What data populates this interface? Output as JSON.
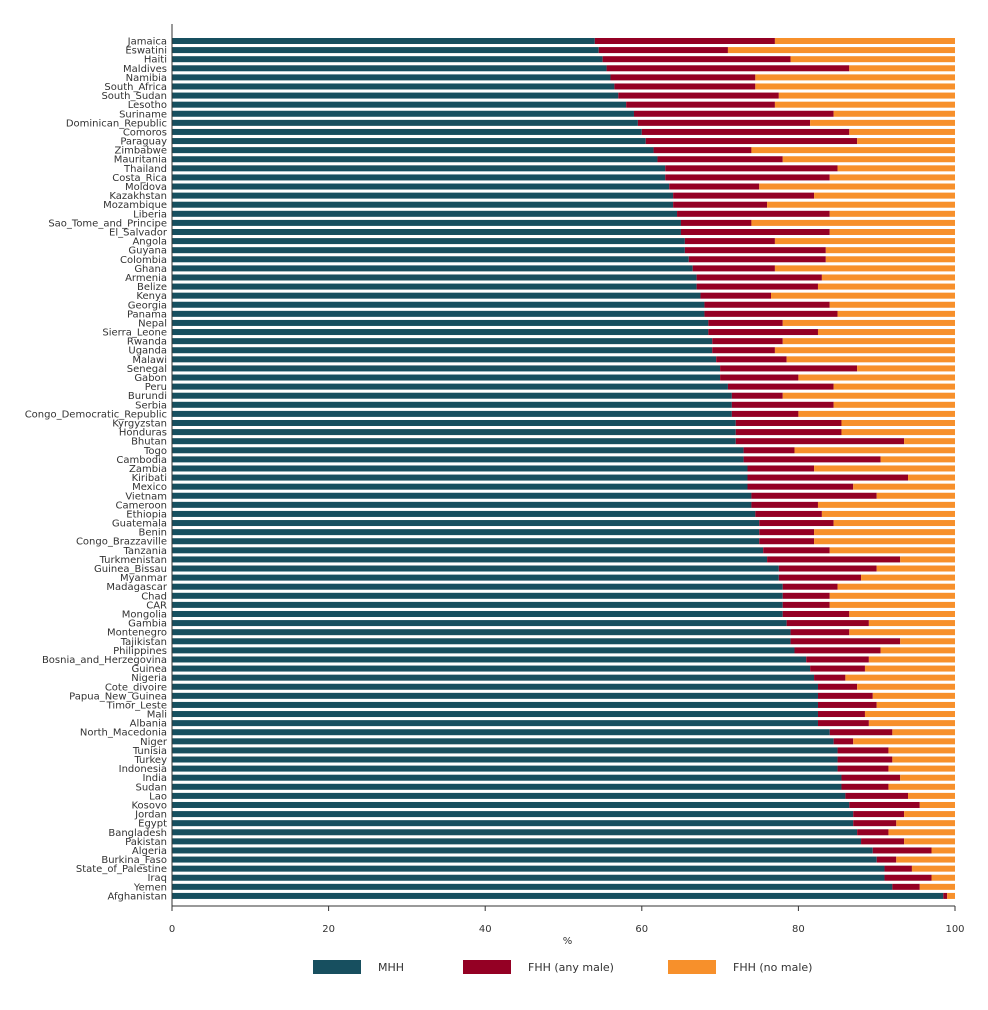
{
  "chart_data": {
    "type": "bar",
    "orientation": "horizontal",
    "stacked": true,
    "xlabel": "%",
    "ylabel": "",
    "xlim": [
      0,
      100
    ],
    "xticks": [
      0,
      20,
      40,
      60,
      80,
      100
    ],
    "grid": false,
    "legend_position": "bottom",
    "categories": [
      "Jamaica",
      "Eswatini",
      "Haiti",
      "Maldives",
      "Namibia",
      "South_Africa",
      "South_Sudan",
      "Lesotho",
      "Suriname",
      "Dominican_Republic",
      "Comoros",
      "Paraguay",
      "Zimbabwe",
      "Mauritania",
      "Thailand",
      "Costa_Rica",
      "Moldova",
      "Kazakhstan",
      "Mozambique",
      "Liberia",
      "Sao_Tome_and_Principe",
      "El_Salvador",
      "Angola",
      "Guyana",
      "Colombia",
      "Ghana",
      "Armenia",
      "Belize",
      "Kenya",
      "Georgia",
      "Panama",
      "Nepal",
      "Sierra_Leone",
      "Rwanda",
      "Uganda",
      "Malawi",
      "Senegal",
      "Gabon",
      "Peru",
      "Burundi",
      "Serbia",
      "Congo_Democratic_Republic",
      "Kyrgyzstan",
      "Honduras",
      "Bhutan",
      "Togo",
      "Cambodia",
      "Zambia",
      "Kiribati",
      "Mexico",
      "Vietnam",
      "Cameroon",
      "Ethiopia",
      "Guatemala",
      "Benin",
      "Congo_Brazzaville",
      "Tanzania",
      "Turkmenistan",
      "Guinea_Bissau",
      "Myanmar",
      "Madagascar",
      "Chad",
      "CAR",
      "Mongolia",
      "Gambia",
      "Montenegro",
      "Tajikistan",
      "Philippines",
      "Bosnia_and_Herzegovina",
      "Guinea",
      "Nigeria",
      "Cote_divoire",
      "Papua_New_Guinea",
      "Timor_Leste",
      "Mali",
      "Albania",
      "North_Macedonia",
      "Niger",
      "Tunisia",
      "Turkey",
      "Indonesia",
      "India",
      "Sudan",
      "Lao",
      "Kosovo",
      "Jordan",
      "Egypt",
      "Bangladesh",
      "Pakistan",
      "Algeria",
      "Burkina_Faso",
      "State_of_Palestine",
      "Iraq",
      "Yemen",
      "Afghanistan"
    ],
    "series": [
      {
        "name": "MHH",
        "color": "#174f5f",
        "values": [
          54,
          54.5,
          55,
          55.5,
          56,
          56.5,
          57,
          58,
          59,
          59.5,
          60,
          60.5,
          61.5,
          62,
          63,
          63,
          63.5,
          64,
          64,
          64.5,
          65,
          65,
          65.5,
          65.5,
          66,
          66.5,
          67,
          67,
          67.5,
          68,
          68,
          68.5,
          68.5,
          69,
          69,
          69.5,
          70,
          70,
          71,
          71.5,
          71.5,
          71.5,
          72,
          72,
          72,
          73,
          73,
          73.5,
          73.5,
          73.5,
          74,
          74,
          74.5,
          75,
          75,
          75,
          75.5,
          76,
          77.5,
          77.5,
          78,
          78,
          78,
          78,
          78.5,
          79,
          79,
          79.5,
          81,
          81.5,
          82,
          82.5,
          82.5,
          82.5,
          82.5,
          82.5,
          84,
          84.5,
          85,
          85,
          85,
          85.5,
          85.5,
          86,
          86.5,
          87,
          87,
          87.5,
          88,
          89.5,
          90,
          91,
          91,
          92,
          98.5
        ]
      },
      {
        "name": "FHH (any male)",
        "color": "#940024",
        "values": [
          23,
          16.5,
          24,
          31,
          18.5,
          18,
          20.5,
          19,
          25.5,
          22,
          26.5,
          27,
          12.5,
          16,
          22,
          21,
          11.5,
          18,
          12,
          19.5,
          9,
          19,
          11.5,
          18,
          17.5,
          10.5,
          16,
          15.5,
          9,
          16,
          17,
          9.5,
          14,
          9,
          8,
          9,
          17.5,
          10,
          13.5,
          6.5,
          13,
          8.5,
          13.5,
          13.5,
          21.5,
          6.5,
          17.5,
          8.5,
          20.5,
          13.5,
          16,
          8.5,
          8.5,
          9.5,
          7,
          7,
          8.5,
          17,
          12.5,
          10.5,
          7,
          6,
          6,
          8.5,
          10.5,
          7.5,
          14,
          11,
          8,
          7,
          4,
          5,
          7,
          7.5,
          6,
          6.5,
          8,
          2.5,
          6.5,
          7,
          6.5,
          7.5,
          6,
          8,
          9,
          6.5,
          5.5,
          4,
          5.5,
          7.5,
          2.5,
          3.5,
          6,
          3.5,
          0.5
        ]
      },
      {
        "name": "FHH (no male)",
        "color": "#f7902b",
        "values": [
          23,
          29,
          21,
          13.5,
          25.5,
          25.5,
          22.5,
          23,
          15.5,
          18.5,
          13.5,
          12.5,
          26,
          22,
          15,
          16,
          25,
          18,
          24,
          16,
          26,
          16,
          23,
          16.5,
          16.5,
          23,
          17,
          17.5,
          23.5,
          16,
          15,
          22,
          17.5,
          22,
          23,
          21.5,
          12.5,
          20,
          15.5,
          22,
          15.5,
          20,
          14.5,
          14.5,
          6.5,
          20.5,
          9.5,
          18,
          6,
          13,
          10,
          17.5,
          17,
          15.5,
          18,
          18,
          16,
          7,
          10,
          12,
          15,
          16,
          16,
          13.5,
          11,
          13.5,
          7,
          9.5,
          11,
          11.5,
          14,
          12.5,
          10.5,
          10,
          11.5,
          11,
          8,
          13,
          8.5,
          8,
          8.5,
          7,
          8.5,
          6,
          4.5,
          6.5,
          7.5,
          8.5,
          6.5,
          3,
          7.5,
          5.5,
          3,
          4.5,
          1
        ]
      }
    ]
  }
}
